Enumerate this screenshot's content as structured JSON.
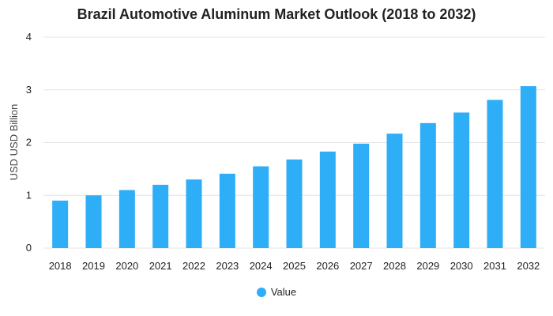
{
  "colors": {
    "series": "#2eaef7"
  },
  "chart_data": {
    "type": "bar",
    "title": "Brazil Automotive Aluminum Market Outlook (2018 to 2032)",
    "xlabel": "",
    "ylabel": "USD USD Billion",
    "ylim": [
      0,
      4
    ],
    "yticks": [
      "0",
      "1",
      "2",
      "3",
      "4"
    ],
    "grid": true,
    "legend_position": "bottom-center",
    "categories": [
      "2018",
      "2019",
      "2020",
      "2021",
      "2022",
      "2023",
      "2024",
      "2025",
      "2026",
      "2027",
      "2028",
      "2029",
      "2030",
      "2031",
      "2032"
    ],
    "series": [
      {
        "name": "Value",
        "values": [
          0.9,
          1.0,
          1.1,
          1.2,
          1.3,
          1.41,
          1.55,
          1.68,
          1.83,
          1.98,
          2.17,
          2.37,
          2.57,
          2.81,
          3.07
        ]
      }
    ]
  }
}
